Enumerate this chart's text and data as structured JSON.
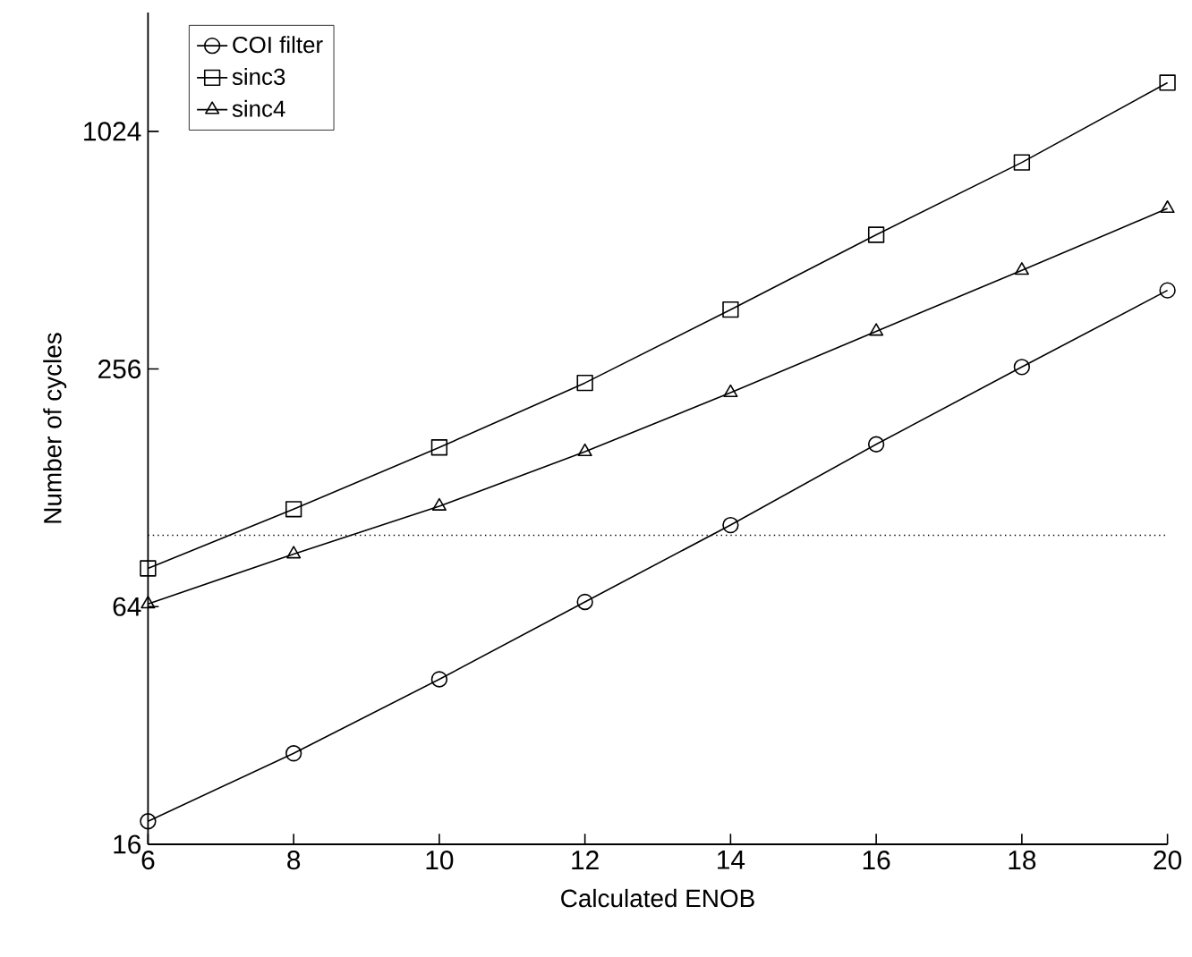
{
  "chart_data": {
    "type": "line",
    "xlabel": "Calculated ENOB",
    "ylabel": "Number of cycles",
    "x": [
      6,
      8,
      10,
      12,
      14,
      16,
      18,
      20
    ],
    "series": [
      {
        "name": "COI filter",
        "color": "#000000",
        "marker": "circle",
        "values": [
          18.3,
          27.2,
          41.9,
          65.8,
          103,
          165,
          259,
          405
        ]
      },
      {
        "name": "sinc3",
        "color": "#000000",
        "marker": "square",
        "values": [
          80,
          113,
          162,
          236,
          362,
          560,
          854,
          1360
        ]
      },
      {
        "name": "sinc4",
        "color": "#000000",
        "marker": "triangle",
        "values": [
          65,
          87,
          115,
          158,
          223,
          319,
          455,
          653
        ]
      }
    ],
    "log": "y",
    "xlim": [
      6,
      20
    ],
    "ylim": [
      16,
      2048
    ],
    "xticks": [
      6,
      8,
      10,
      12,
      14,
      16,
      18,
      20
    ],
    "yticks": [
      16,
      64,
      256,
      1024
    ],
    "ref_lines": [
      {
        "axis": "y",
        "value": 97,
        "line_style": "dotted"
      }
    ],
    "legend": "top left",
    "grid": false,
    "line_style": "solid"
  }
}
